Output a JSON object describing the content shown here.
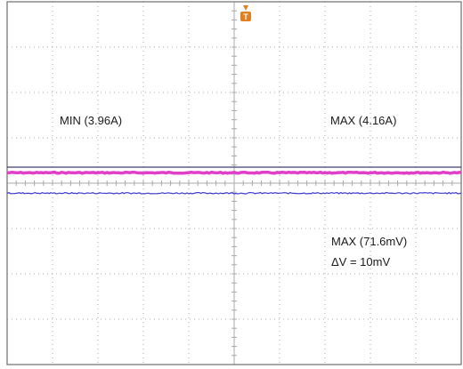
{
  "chart_data": {
    "type": "line",
    "grid": true,
    "grid_divisions": {
      "horizontal": 10,
      "vertical": 8
    },
    "trigger_marker": "T",
    "colors": {
      "background": "#ffffff",
      "frame": "#8a8a8a",
      "grid": "#a8a8a8",
      "current_trace": "#e040c8",
      "voltage_trace": "#3a3ad0",
      "voltage_max_cursor": "#404070",
      "trigger_marker": "#e08020"
    },
    "series": [
      {
        "id": "current",
        "min_value": 3.96,
        "max_value": 4.16,
        "unit": "A",
        "points": 200
      },
      {
        "id": "voltage",
        "max_value": 71.6,
        "unit": "mV",
        "ripple_amplitude_div": 0.35,
        "points": 260
      }
    ],
    "annotations": {
      "current_min": "MIN (3.96A)",
      "current_max": "MAX (4.16A)",
      "voltage_max": "MAX (71.6mV)",
      "voltage_delta": "ΔV = 10mV"
    }
  }
}
